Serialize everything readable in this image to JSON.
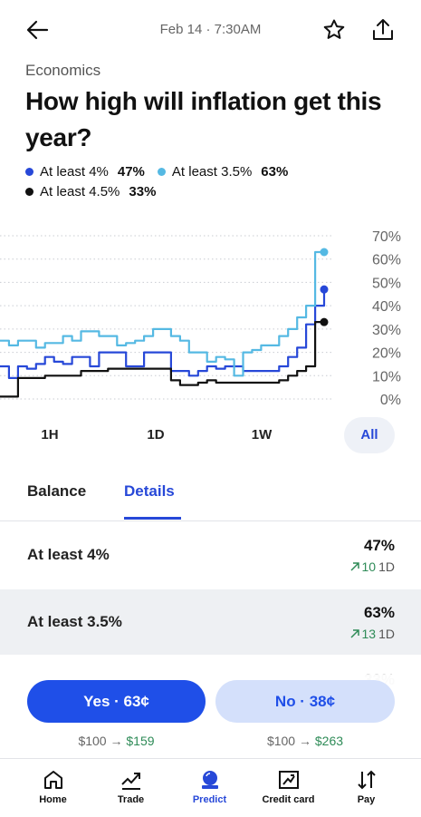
{
  "header": {
    "date": "Feb 14 · 7:30AM"
  },
  "category": "Economics",
  "title": "How high will inflation get this year?",
  "chart_data": {
    "type": "line",
    "series": [
      {
        "name": "At least 4%",
        "color": "#2748d8",
        "last_label": "47%",
        "values": [
          14,
          9,
          14,
          13,
          15,
          18,
          16,
          15,
          18,
          18,
          14,
          20,
          20,
          20,
          14,
          14,
          20,
          20,
          20,
          12,
          12,
          10,
          12,
          14,
          13,
          14,
          14,
          12,
          12,
          12,
          12,
          14,
          18,
          22,
          32,
          40,
          47
        ]
      },
      {
        "name": "At least 3.5%",
        "color": "#55b9e3",
        "last_label": "63%",
        "values": [
          25,
          23,
          25,
          25,
          22,
          24,
          24,
          27,
          25,
          29,
          29,
          27,
          27,
          23,
          24,
          25,
          27,
          30,
          30,
          27,
          25,
          20,
          20,
          16,
          18,
          17,
          10,
          20,
          21,
          23,
          23,
          27,
          30,
          35,
          40,
          63,
          63
        ]
      },
      {
        "name": "At least 4.5%",
        "color": "#111111",
        "last_label": "33%",
        "values": [
          1,
          1,
          9,
          9,
          9,
          10,
          10,
          10,
          10,
          12,
          12,
          12,
          13,
          13,
          13,
          13,
          13,
          13,
          13,
          8,
          6,
          6,
          7,
          8,
          7,
          7,
          7,
          7,
          7,
          7,
          7,
          8,
          10,
          12,
          14,
          33,
          33
        ]
      }
    ],
    "ylim": [
      0,
      70
    ],
    "yticks": [
      {
        "value": 0,
        "label": "0%"
      },
      {
        "value": 10,
        "label": "10%"
      },
      {
        "value": 20,
        "label": "20%"
      },
      {
        "value": 30,
        "label": "30%"
      },
      {
        "value": 40,
        "label": "40%"
      },
      {
        "value": 50,
        "label": "50%"
      },
      {
        "value": 60,
        "label": "60%"
      },
      {
        "value": 70,
        "label": "70%"
      }
    ],
    "grid": true
  },
  "ranges": {
    "options": [
      "1H",
      "1D",
      "1W",
      "All"
    ],
    "selected": 3
  },
  "tabs": {
    "options": [
      "Balance",
      "Details"
    ],
    "selected": 1
  },
  "outcomes": [
    {
      "change": "10",
      "period": "1D"
    },
    {
      "change": "13",
      "period": "1D"
    }
  ],
  "actions": {
    "yes": {
      "label": "Yes · 63¢",
      "payout_from": "$100 →",
      "payout_to": "$159"
    },
    "no": {
      "label": "No · 38¢",
      "payout_from": "$100 →",
      "payout_to": "$263"
    }
  },
  "nav": [
    "Home",
    "Trade",
    "Predict",
    "Credit card",
    "Pay"
  ]
}
